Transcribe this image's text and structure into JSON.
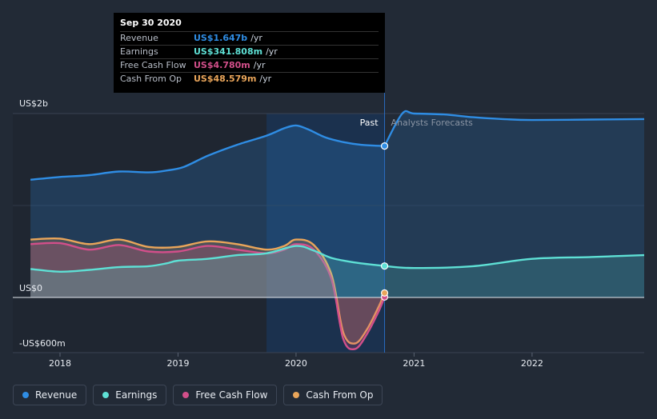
{
  "chart_data": {
    "type": "area",
    "y_unit": "US$",
    "ylim": [
      -600,
      2000
    ],
    "y_ticks": [
      {
        "value": 2000,
        "label": "US$2b"
      },
      {
        "value": 0,
        "label": "US$0"
      },
      {
        "value": -600,
        "label": "-US$600m"
      }
    ],
    "xlim": [
      2017.6,
      2022.95
    ],
    "x_ticks": [
      {
        "value": 2018,
        "label": "2018"
      },
      {
        "value": 2019,
        "label": "2019"
      },
      {
        "value": 2020,
        "label": "2020"
      },
      {
        "value": 2021,
        "label": "2021"
      },
      {
        "value": 2022,
        "label": "2022"
      }
    ],
    "past_label": "Past",
    "forecast_label": "Analysts Forecasts",
    "divider_x": 2020.75,
    "highlight_range": [
      2019.75,
      2020.75
    ],
    "series": [
      {
        "name": "Revenue",
        "color": "#2f8de4",
        "x": [
          2017.75,
          2018.0,
          2018.25,
          2018.5,
          2018.75,
          2018.9,
          2019.05,
          2019.25,
          2019.5,
          2019.75,
          2019.9,
          2020.0,
          2020.1,
          2020.25,
          2020.4,
          2020.55,
          2020.7,
          2020.75
        ],
        "values": [
          1280,
          1310,
          1330,
          1370,
          1360,
          1380,
          1420,
          1540,
          1660,
          1760,
          1840,
          1870,
          1830,
          1740,
          1690,
          1660,
          1650,
          1647
        ],
        "forecast": {
          "x": [
            2020.75,
            2020.9,
            2021.0,
            2021.25,
            2021.5,
            2021.75,
            2022.0,
            2022.5,
            2022.95
          ],
          "values": [
            1647,
            2000,
            2000,
            1990,
            1960,
            1940,
            1930,
            1935,
            1940
          ]
        }
      },
      {
        "name": "Earnings",
        "color": "#5ee0d5",
        "x": [
          2017.75,
          2018.0,
          2018.25,
          2018.5,
          2018.75,
          2018.9,
          2019.0,
          2019.25,
          2019.5,
          2019.75,
          2020.0,
          2020.15,
          2020.3,
          2020.5,
          2020.75
        ],
        "values": [
          310,
          280,
          300,
          330,
          340,
          370,
          400,
          420,
          460,
          480,
          560,
          510,
          430,
          380,
          342
        ],
        "forecast": {
          "x": [
            2020.75,
            2021.0,
            2021.5,
            2022.0,
            2022.5,
            2022.95
          ],
          "values": [
            342,
            320,
            340,
            420,
            440,
            460
          ]
        }
      },
      {
        "name": "Free Cash Flow",
        "color": "#d24f8a",
        "x": [
          2017.75,
          2018.0,
          2018.25,
          2018.5,
          2018.75,
          2019.0,
          2019.25,
          2019.5,
          2019.75,
          2019.9,
          2020.0,
          2020.15,
          2020.3,
          2020.4,
          2020.5,
          2020.6,
          2020.7,
          2020.75
        ],
        "values": [
          580,
          590,
          520,
          570,
          500,
          500,
          560,
          520,
          480,
          520,
          580,
          520,
          200,
          -450,
          -560,
          -400,
          -150,
          5
        ]
      },
      {
        "name": "Cash From Op",
        "color": "#e9a55a",
        "x": [
          2017.75,
          2018.0,
          2018.25,
          2018.5,
          2018.75,
          2019.0,
          2019.25,
          2019.5,
          2019.75,
          2019.9,
          2020.0,
          2020.15,
          2020.3,
          2020.4,
          2020.5,
          2020.6,
          2020.7,
          2020.75
        ],
        "values": [
          630,
          640,
          580,
          630,
          550,
          550,
          610,
          580,
          520,
          560,
          630,
          570,
          250,
          -380,
          -500,
          -350,
          -100,
          49
        ]
      }
    ]
  },
  "tooltip": {
    "date": "Sep 30 2020",
    "unit": "/yr",
    "rows": [
      {
        "label": "Revenue",
        "value": "US$1.647b",
        "color": "#2f8de4"
      },
      {
        "label": "Earnings",
        "value": "US$341.808m",
        "color": "#5ee0d5"
      },
      {
        "label": "Free Cash Flow",
        "value": "US$4.780m",
        "color": "#d24f8a"
      },
      {
        "label": "Cash From Op",
        "value": "US$48.579m",
        "color": "#e9a55a"
      }
    ]
  },
  "legend": [
    {
      "label": "Revenue",
      "color": "#2f8de4"
    },
    {
      "label": "Earnings",
      "color": "#5ee0d5"
    },
    {
      "label": "Free Cash Flow",
      "color": "#d24f8a"
    },
    {
      "label": "Cash From Op",
      "color": "#e9a55a"
    }
  ]
}
